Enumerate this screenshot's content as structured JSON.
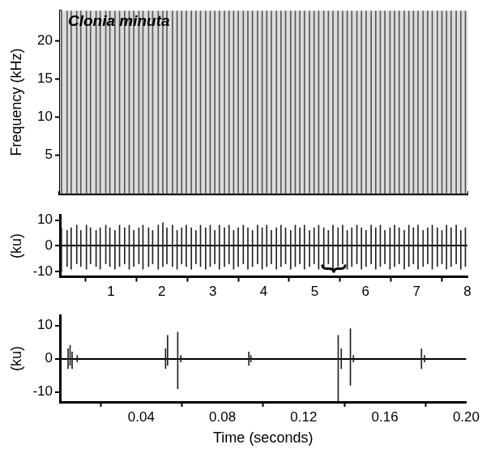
{
  "chart_data": [
    {
      "type": "spectrogram",
      "title": "Clonia minuta",
      "y_label": "Frequency (kHz)",
      "xlim": [
        0,
        8
      ],
      "ylim": [
        0,
        24
      ],
      "yticks": [
        5,
        10,
        15,
        20
      ],
      "tick_labels": "y",
      "grid": false,
      "color": "#595959",
      "x": [
        0.03,
        0.14,
        0.22,
        0.33,
        0.41,
        0.52,
        0.6,
        0.71,
        0.79,
        0.9,
        0.98,
        1.08,
        1.17,
        1.27,
        1.36,
        1.45,
        1.55,
        1.63,
        1.74,
        1.82,
        1.93,
        2.02,
        2.1,
        2.21,
        2.3,
        2.39,
        2.48,
        2.58,
        2.67,
        2.76,
        2.86,
        2.95,
        3.04,
        3.13,
        3.23,
        3.32,
        3.41,
        3.5,
        3.6,
        3.69,
        3.78,
        3.88,
        3.97,
        4.06,
        4.15,
        4.25,
        4.34,
        4.43,
        4.53,
        4.62,
        4.71,
        4.8,
        4.9,
        4.99,
        5.08,
        5.18,
        5.27,
        5.36,
        5.46,
        5.55,
        5.64,
        5.73,
        5.83,
        5.92,
        6.01,
        6.11,
        6.2,
        6.29,
        6.38,
        6.48,
        6.57,
        6.66,
        6.76,
        6.85,
        6.94,
        7.03,
        7.13,
        7.22,
        7.31,
        7.41,
        7.5,
        7.59,
        7.68,
        7.78,
        7.87,
        7.96
      ]
    },
    {
      "type": "oscillogram",
      "y_label": "(ku)",
      "xlim": [
        0,
        8
      ],
      "ylim": [
        -12,
        12
      ],
      "xticks": [
        1,
        2,
        3,
        4,
        5,
        6,
        7,
        8
      ],
      "yticks": [
        -10,
        0,
        10
      ],
      "baseline": 0,
      "tick_labels": true,
      "grid": false,
      "color": "#222222",
      "zoom_bracket": [
        5.15,
        5.6
      ],
      "x": [
        0.03,
        0.14,
        0.22,
        0.33,
        0.41,
        0.52,
        0.6,
        0.71,
        0.79,
        0.9,
        0.98,
        1.08,
        1.17,
        1.27,
        1.36,
        1.45,
        1.55,
        1.63,
        1.74,
        1.82,
        1.93,
        2.02,
        2.1,
        2.21,
        2.3,
        2.39,
        2.48,
        2.58,
        2.67,
        2.76,
        2.86,
        2.95,
        3.04,
        3.13,
        3.23,
        3.32,
        3.41,
        3.5,
        3.6,
        3.69,
        3.78,
        3.88,
        3.97,
        4.06,
        4.15,
        4.25,
        4.34,
        4.43,
        4.53,
        4.62,
        4.71,
        4.8,
        4.9,
        4.99,
        5.08,
        5.18,
        5.27,
        5.36,
        5.46,
        5.55,
        5.64,
        5.73,
        5.83,
        5.92,
        6.01,
        6.11,
        6.2,
        6.29,
        6.38,
        6.48,
        6.57,
        6.66,
        6.76,
        6.85,
        6.94,
        7.03,
        7.13,
        7.22,
        7.31,
        7.41,
        7.5,
        7.59,
        7.68,
        7.78,
        7.87,
        7.96
      ],
      "values": [
        [
          -10,
          7
        ],
        [
          -8,
          6
        ],
        [
          -9,
          7
        ],
        [
          -7,
          8
        ],
        [
          -8,
          6
        ],
        [
          -9,
          8
        ],
        [
          -7,
          7
        ],
        [
          -8,
          6
        ],
        [
          -9,
          7
        ],
        [
          -7,
          8
        ],
        [
          -8,
          7
        ],
        [
          -9,
          6
        ],
        [
          -8,
          8
        ],
        [
          -7,
          7
        ],
        [
          -9,
          8
        ],
        [
          -8,
          6
        ],
        [
          -7,
          7
        ],
        [
          -9,
          8
        ],
        [
          -8,
          7
        ],
        [
          -7,
          6
        ],
        [
          -9,
          8
        ],
        [
          -8,
          9
        ],
        [
          -7,
          7
        ],
        [
          -8,
          8
        ],
        [
          -9,
          6
        ],
        [
          -7,
          7
        ],
        [
          -8,
          8
        ],
        [
          -9,
          7
        ],
        [
          -7,
          6
        ],
        [
          -8,
          8
        ],
        [
          -9,
          7
        ],
        [
          -8,
          8
        ],
        [
          -7,
          6
        ],
        [
          -9,
          8
        ],
        [
          -8,
          7
        ],
        [
          -7,
          8
        ],
        [
          -9,
          6
        ],
        [
          -8,
          7
        ],
        [
          -7,
          8
        ],
        [
          -9,
          7
        ],
        [
          -8,
          6
        ],
        [
          -7,
          8
        ],
        [
          -9,
          7
        ],
        [
          -8,
          8
        ],
        [
          -7,
          6
        ],
        [
          -9,
          7
        ],
        [
          -8,
          8
        ],
        [
          -7,
          7
        ],
        [
          -9,
          6
        ],
        [
          -8,
          8
        ],
        [
          -7,
          7
        ],
        [
          -9,
          8
        ],
        [
          -8,
          6
        ],
        [
          -7,
          7
        ],
        [
          -9,
          8
        ],
        [
          -8,
          7
        ],
        [
          -7,
          6
        ],
        [
          -9,
          8
        ],
        [
          -8,
          7
        ],
        [
          -7,
          8
        ],
        [
          -9,
          6
        ],
        [
          -8,
          7
        ],
        [
          -7,
          8
        ],
        [
          -9,
          7
        ],
        [
          -8,
          6
        ],
        [
          -7,
          8
        ],
        [
          -9,
          7
        ],
        [
          -8,
          8
        ],
        [
          -7,
          6
        ],
        [
          -9,
          7
        ],
        [
          -8,
          8
        ],
        [
          -7,
          7
        ],
        [
          -9,
          6
        ],
        [
          -8,
          8
        ],
        [
          -7,
          7
        ],
        [
          -9,
          8
        ],
        [
          -8,
          6
        ],
        [
          -7,
          7
        ],
        [
          -9,
          8
        ],
        [
          -8,
          7
        ],
        [
          -7,
          6
        ],
        [
          -9,
          8
        ],
        [
          -8,
          7
        ],
        [
          -7,
          8
        ],
        [
          -9,
          6
        ],
        [
          -8,
          7
        ]
      ]
    },
    {
      "type": "oscillogram",
      "y_label": "(ku)",
      "x_label": "Time (seconds)",
      "xlim": [
        0,
        0.2
      ],
      "ylim": [
        -13,
        13
      ],
      "xticks": [
        0.04,
        0.08,
        0.12,
        0.16,
        {
          "value": 0.2,
          "label": "0.20"
        }
      ],
      "yticks": [
        -10,
        0,
        10
      ],
      "baseline": 0,
      "tick_labels": true,
      "grid": false,
      "color": "#222222",
      "x": [
        0.004,
        0.005,
        0.006,
        0.0085,
        0.052,
        0.053,
        0.058,
        0.0595,
        0.093,
        0.094,
        0.137,
        0.1385,
        0.143,
        0.1445,
        0.178,
        0.1795
      ],
      "values": [
        [
          -3,
          3
        ],
        [
          -2,
          4
        ],
        [
          -3,
          2
        ],
        [
          -1,
          1
        ],
        [
          -3,
          3
        ],
        [
          -2,
          7
        ],
        [
          -9,
          8
        ],
        [
          -1,
          1
        ],
        [
          -2,
          2
        ],
        [
          -1,
          1
        ],
        [
          -13,
          7
        ],
        [
          -3,
          3
        ],
        [
          -8,
          9
        ],
        [
          -1,
          1
        ],
        [
          -3,
          3
        ],
        [
          -1,
          1
        ]
      ]
    }
  ]
}
